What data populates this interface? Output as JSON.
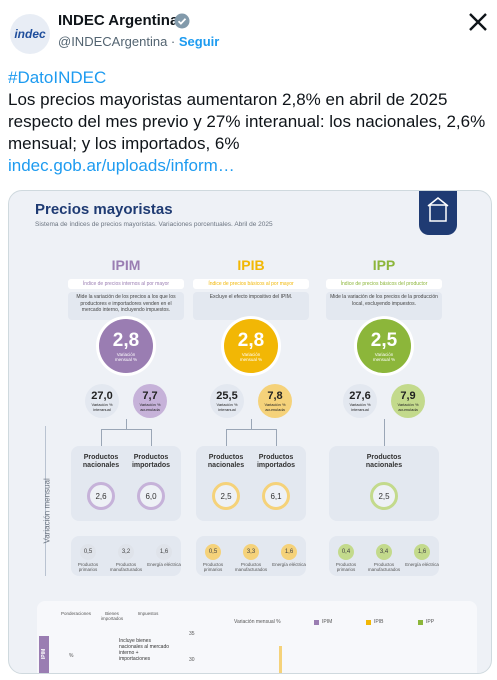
{
  "header": {
    "logo": "indec",
    "name": "INDEC Argentina",
    "handle": "@INDECArgentina",
    "separator": "·",
    "follow": "Seguir"
  },
  "tweet": {
    "hashtag": "#DatoINDEC",
    "text": "Los precios mayoristas aumentaron 2,8% en abril de 2025 respecto del mes previo y 27% interanual: los nacionales, 2,6% mensual; y los importados, 6%",
    "link": "indec.gob.ar/uploads/inform…"
  },
  "infographic": {
    "title": "Precios mayoristas",
    "subtitle": "Sistema de índices de precios mayoristas. Variaciones porcentuales. Abril de 2025",
    "side_label": "Variación mensual",
    "panels": [
      {
        "code": "IPIM",
        "name": "Índice de precios internos al por mayor",
        "description": "Mide la variación de los precios a los que los productores e importadores venden en el mercado interno, incluyendo impuestos.",
        "main": "2,8",
        "main_label": "Variación mensual %",
        "interanual": "27,0",
        "interanual_label": "Variación % interanual",
        "acumulada": "7,7",
        "acumulada_label": "Variación % acumulada",
        "color": "#9a7db2",
        "light": "#c6b2d9",
        "subs": [
          {
            "label": "Productos nacionales",
            "value": "2,6"
          },
          {
            "label": "Productos importados",
            "value": "6,0"
          }
        ],
        "breakdown": [
          {
            "value": "0,5",
            "label": "Productos primarios"
          },
          {
            "value": "3,2",
            "label": "Productos manufacturados"
          },
          {
            "value": "1,6",
            "label": "Energía eléctrica"
          }
        ]
      },
      {
        "code": "IPIB",
        "name": "Índice de precios básicos al por mayor",
        "description": "Excluye el efecto impositivo del IPIM.",
        "main": "2,8",
        "main_label": "Variación mensual %",
        "interanual": "25,5",
        "interanual_label": "Variación % interanual",
        "acumulada": "7,8",
        "acumulada_label": "Variación % acumulada",
        "color": "#f2b705",
        "light": "#f5d27a",
        "subs": [
          {
            "label": "Productos nacionales",
            "value": "2,5"
          },
          {
            "label": "Productos importados",
            "value": "6,1"
          }
        ],
        "breakdown": [
          {
            "value": "0,5",
            "label": "Productos primarios"
          },
          {
            "value": "3,3",
            "label": "Productos manufacturados"
          },
          {
            "value": "1,6",
            "label": "Energía eléctrica"
          }
        ]
      },
      {
        "code": "IPP",
        "name": "Índice de precios básicos del productor",
        "description": "Mide la variación de los precios de la producción local, excluyendo impuestos.",
        "main": "2,5",
        "main_label": "Variación mensual %",
        "interanual": "27,6",
        "interanual_label": "Variación % interanual",
        "acumulada": "7,9",
        "acumulada_label": "Variación % acumulada",
        "color": "#8cb63a",
        "light": "#c3da8c",
        "subs": [
          {
            "label": "Productos nacionales",
            "value": "2,5"
          }
        ],
        "breakdown": [
          {
            "value": "0,4",
            "label": "Productos primarios"
          },
          {
            "value": "3,4",
            "label": "Productos manufacturados"
          },
          {
            "value": "1,6",
            "label": "Energía eléctrica"
          }
        ]
      }
    ],
    "bottom": {
      "headers": [
        "Ponderaciones",
        "Bienes importados",
        "Impuestos"
      ],
      "legend_title": "Variación mensual %",
      "legend": [
        "IPIM",
        "IPIB",
        "IPP"
      ],
      "row_label": "IPIM",
      "row_note": "Incluye bienes nacionales al mercado interno + importaciones",
      "row_weight": "%",
      "ticks": [
        "35",
        "30"
      ]
    }
  }
}
